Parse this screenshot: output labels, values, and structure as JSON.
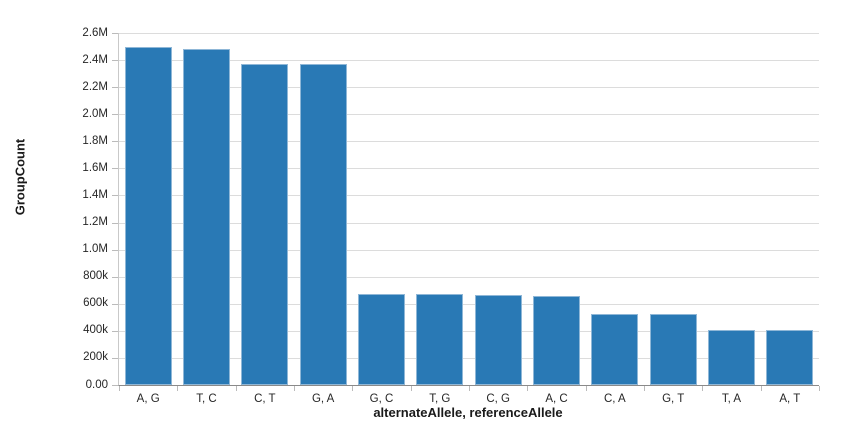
{
  "chart_data": {
    "type": "bar",
    "xlabel": "alternateAllele, referenceAllele",
    "ylabel": "GroupCount",
    "categories": [
      "A, G",
      "T, C",
      "C, T",
      "G, A",
      "G, C",
      "T, G",
      "C, G",
      "A, C",
      "C, A",
      "G, T",
      "T, A",
      "A, T"
    ],
    "values": [
      2500000,
      2480000,
      2370000,
      2368000,
      672000,
      670000,
      668000,
      660000,
      524000,
      522000,
      405000,
      403000
    ],
    "ylim": [
      0,
      2600000
    ],
    "y_tick_labels": [
      "0.00",
      "200k",
      "400k",
      "600k",
      "800k",
      "1.0M",
      "1.2M",
      "1.4M",
      "1.6M",
      "1.8M",
      "2.0M",
      "2.2M",
      "2.4M",
      "2.6M"
    ],
    "grid": true,
    "legend": false,
    "colors": {
      "bar_fill": "#2979b5",
      "bar_edge": "#8fb7d7",
      "gridline": "#dcdcdc",
      "axis_baseline": "#8a8a8a",
      "axis_domain": "#c9c9c9",
      "tick_mark": "#bbbbbb",
      "tick_label": "#262626",
      "axis_title": "#1a1a1a"
    }
  }
}
